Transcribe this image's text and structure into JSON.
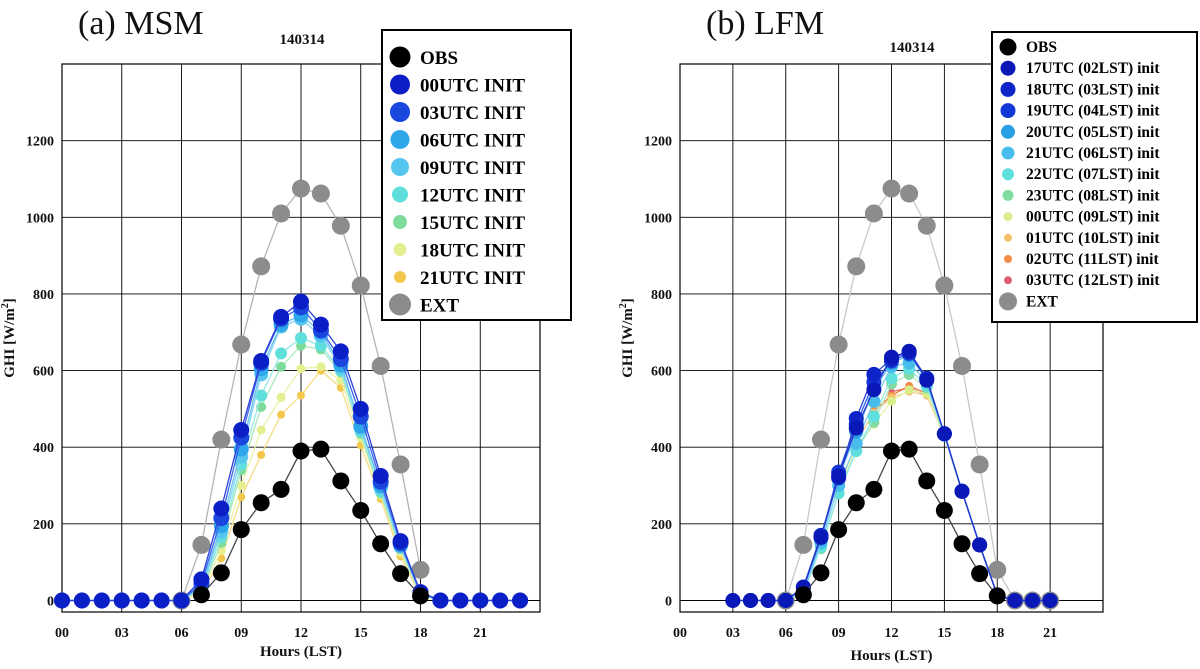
{
  "chart_data": [
    {
      "type": "line",
      "panel_label": "(a) MSM",
      "title": "140314",
      "xlabel": "Hours (LST)",
      "ylabel": "GHI [W/m",
      "ylabel_sup": "2",
      "ylabel_close": "]",
      "xticks": [
        "00",
        "03",
        "06",
        "09",
        "12",
        "15",
        "18",
        "21"
      ],
      "yticks": [
        "0",
        "200",
        "400",
        "600",
        "800",
        "1000",
        "1200"
      ],
      "xlim": [
        0,
        24
      ],
      "ylim": [
        -30,
        1400
      ],
      "grid": true,
      "legend_position": "top-right",
      "series": [
        {
          "name": "EXT",
          "color": "#8c8c8c",
          "line": "#b4b4b4",
          "size": 9,
          "x": [
            6,
            7,
            8,
            9,
            10,
            11,
            12,
            13,
            14,
            15,
            16,
            17,
            18
          ],
          "y": [
            0,
            145,
            420,
            668,
            872,
            1010,
            1075,
            1062,
            978,
            822,
            612,
            355,
            80
          ]
        },
        {
          "name": "21UTC INIT",
          "color": "#f3c84a",
          "line": "#f6dc86",
          "size": 4,
          "x": [
            0,
            1,
            2,
            3,
            4,
            5,
            6,
            7,
            8,
            9,
            10,
            11,
            12,
            13,
            14,
            15,
            16,
            17,
            18,
            19,
            20,
            21,
            22,
            23
          ],
          "y": [
            0,
            0,
            0,
            0,
            0,
            0,
            0,
            20,
            110,
            270,
            380,
            485,
            535,
            600,
            555,
            405,
            265,
            115,
            12,
            0,
            0,
            0,
            0,
            0
          ]
        },
        {
          "name": "18UTC INIT",
          "color": "#e4ef90",
          "line": "#e9f2a8",
          "size": 4.5,
          "x": [
            0,
            1,
            2,
            3,
            4,
            5,
            6,
            7,
            8,
            9,
            10,
            11,
            12,
            13,
            14,
            15,
            16,
            17,
            18,
            19,
            20,
            21,
            22,
            23
          ],
          "y": [
            0,
            0,
            0,
            0,
            0,
            0,
            0,
            25,
            130,
            300,
            445,
            530,
            605,
            610,
            575,
            425,
            275,
            125,
            15,
            0,
            0,
            0,
            0,
            0
          ]
        },
        {
          "name": "15UTC INIT",
          "color": "#7ddc9b",
          "line": "#a8e8be",
          "size": 5,
          "x": [
            0,
            1,
            2,
            3,
            4,
            5,
            6,
            7,
            8,
            9,
            10,
            11,
            12,
            13,
            14,
            15,
            16,
            17,
            18,
            19,
            20,
            21,
            22,
            23
          ],
          "y": [
            0,
            0,
            0,
            0,
            0,
            0,
            0,
            28,
            150,
            340,
            505,
            610,
            665,
            655,
            595,
            435,
            280,
            135,
            15,
            0,
            0,
            0,
            0,
            0
          ]
        },
        {
          "name": "12UTC INIT",
          "color": "#60dedb",
          "line": "#92e9e6",
          "size": 6,
          "x": [
            0,
            1,
            2,
            3,
            4,
            5,
            6,
            7,
            8,
            9,
            10,
            11,
            12,
            13,
            14,
            15,
            16,
            17,
            18,
            19,
            20,
            21,
            22,
            23
          ],
          "y": [
            0,
            0,
            0,
            0,
            0,
            0,
            0,
            32,
            165,
            355,
            535,
            645,
            685,
            665,
            600,
            440,
            285,
            140,
            16,
            0,
            0,
            0,
            0,
            0
          ]
        },
        {
          "name": "09UTC INIT",
          "color": "#56c6ef",
          "line": "#86d6f3",
          "size": 7,
          "x": [
            0,
            1,
            2,
            3,
            4,
            5,
            6,
            7,
            8,
            9,
            10,
            11,
            12,
            13,
            14,
            15,
            16,
            17,
            18,
            19,
            20,
            21,
            22,
            23
          ],
          "y": [
            0,
            0,
            0,
            0,
            0,
            0,
            0,
            35,
            180,
            375,
            590,
            715,
            735,
            690,
            610,
            450,
            295,
            140,
            18,
            0,
            0,
            0,
            0,
            0
          ]
        },
        {
          "name": "06UTC INIT",
          "color": "#2ea6ea",
          "line": "#6cc0f0",
          "size": 7.5,
          "x": [
            0,
            1,
            2,
            3,
            4,
            5,
            6,
            7,
            8,
            9,
            10,
            11,
            12,
            13,
            14,
            15,
            16,
            17,
            18,
            19,
            20,
            21,
            22,
            23
          ],
          "y": [
            0,
            0,
            0,
            0,
            0,
            0,
            0,
            38,
            195,
            395,
            605,
            720,
            745,
            700,
            615,
            455,
            300,
            145,
            18,
            0,
            0,
            0,
            0,
            0
          ]
        },
        {
          "name": "03UTC INIT",
          "color": "#1a46e0",
          "line": "#3a64ea",
          "size": 8,
          "x": [
            0,
            1,
            2,
            3,
            4,
            5,
            6,
            7,
            8,
            9,
            10,
            11,
            12,
            13,
            14,
            15,
            16,
            17,
            18,
            19,
            20,
            21,
            22,
            23
          ],
          "y": [
            0,
            0,
            0,
            0,
            0,
            0,
            0,
            45,
            215,
            425,
            620,
            735,
            765,
            705,
            630,
            480,
            310,
            150,
            20,
            0,
            0,
            0,
            0,
            0
          ]
        },
        {
          "name": "00UTC INIT",
          "color": "#0b1fc6",
          "line": "#2a3fd8",
          "size": 8,
          "x": [
            0,
            1,
            2,
            3,
            4,
            5,
            6,
            7,
            8,
            9,
            10,
            11,
            12,
            13,
            14,
            15,
            16,
            17,
            18,
            19,
            20,
            21,
            22,
            23
          ],
          "y": [
            0,
            0,
            0,
            0,
            0,
            0,
            0,
            55,
            240,
            445,
            625,
            740,
            780,
            720,
            650,
            500,
            325,
            155,
            22,
            0,
            0,
            0,
            0,
            0
          ]
        },
        {
          "name": "OBS",
          "color": "#000000",
          "line": "#444444",
          "size": 8.5,
          "x": [
            7,
            8,
            9,
            10,
            11,
            12,
            13,
            14,
            15,
            16,
            17,
            18
          ],
          "y": [
            15,
            72,
            185,
            255,
            290,
            390,
            395,
            312,
            235,
            148,
            70,
            12
          ]
        }
      ]
    },
    {
      "type": "line",
      "panel_label": "(b) LFM",
      "title": "140314",
      "xlabel": "Hours (LST)",
      "ylabel": "GHI [W/m",
      "ylabel_sup": "2",
      "ylabel_close": "]",
      "xticks": [
        "00",
        "03",
        "06",
        "09",
        "12",
        "15",
        "18",
        "21"
      ],
      "yticks": [
        "0",
        "200",
        "400",
        "600",
        "800",
        "1000",
        "1200"
      ],
      "xlim": [
        0,
        24
      ],
      "ylim": [
        -30,
        1400
      ],
      "grid": true,
      "legend_position": "top-right",
      "series": [
        {
          "name": "EXT",
          "color": "#8c8c8c",
          "line": "#c8c8c8",
          "size": 9,
          "x": [
            6,
            7,
            8,
            9,
            10,
            11,
            12,
            13,
            14,
            15,
            16,
            17,
            18,
            19,
            20,
            21
          ],
          "y": [
            0,
            145,
            420,
            668,
            872,
            1010,
            1075,
            1062,
            978,
            822,
            612,
            355,
            80,
            0,
            0,
            0
          ]
        },
        {
          "name": "03UTC (12LST) init",
          "color": "#e05a72",
          "line": "#e07060",
          "size": 3,
          "x": [
            12,
            13,
            14,
            15,
            16,
            17,
            18,
            19,
            20,
            21
          ],
          "y": [
            545,
            555,
            535,
            430,
            285,
            145,
            14,
            0,
            0,
            0
          ]
        },
        {
          "name": "02UTC (11LST) init",
          "color": "#f08c46",
          "line": "#ef7a3e",
          "size": 4,
          "x": [
            11,
            12,
            13,
            14,
            15,
            16,
            17,
            18,
            19,
            20,
            21
          ],
          "y": [
            495,
            535,
            560,
            540,
            430,
            285,
            145,
            14,
            0,
            0,
            0
          ]
        },
        {
          "name": "01UTC (10LST) init",
          "color": "#f5c06a",
          "line": "#f7d08e",
          "size": 4,
          "x": [
            10,
            11,
            12,
            13,
            14,
            15,
            16,
            17,
            18,
            19,
            20,
            21
          ],
          "y": [
            415,
            490,
            530,
            545,
            535,
            430,
            285,
            145,
            14,
            0,
            0,
            0
          ]
        },
        {
          "name": "00UTC (09LST) init",
          "color": "#d8ee8a",
          "line": "#e4f2a8",
          "size": 4.5,
          "x": [
            9,
            10,
            11,
            12,
            13,
            14,
            15,
            16,
            17,
            18,
            19,
            20,
            21
          ],
          "y": [
            290,
            400,
            460,
            520,
            550,
            540,
            430,
            285,
            145,
            14,
            0,
            0,
            0
          ]
        },
        {
          "name": "23UTC (08LST) init",
          "color": "#82dca2",
          "line": "#aee9c2",
          "size": 5.5,
          "x": [
            8,
            9,
            10,
            11,
            12,
            13,
            14,
            15,
            16,
            17,
            18,
            19,
            20,
            21
          ],
          "y": [
            135,
            280,
            390,
            465,
            565,
            590,
            555,
            430,
            285,
            145,
            14,
            0,
            0,
            0
          ]
        },
        {
          "name": "22UTC (07LST) init",
          "color": "#5ee0dc",
          "line": "#90eae6",
          "size": 6,
          "x": [
            7,
            8,
            9,
            10,
            11,
            12,
            13,
            14,
            15,
            16,
            17,
            18,
            19,
            20,
            21
          ],
          "y": [
            20,
            140,
            280,
            390,
            480,
            580,
            605,
            560,
            430,
            285,
            145,
            14,
            0,
            0,
            0
          ]
        },
        {
          "name": "21UTC (06LST) init",
          "color": "#48bdec",
          "line": "#7ccdf1",
          "size": 6.5,
          "x": [
            6,
            7,
            8,
            9,
            10,
            11,
            12,
            13,
            14,
            15,
            16,
            17,
            18,
            19,
            20,
            21
          ],
          "y": [
            0,
            25,
            150,
            300,
            410,
            520,
            610,
            620,
            570,
            435,
            285,
            145,
            14,
            0,
            0,
            0
          ]
        },
        {
          "name": "20UTC (05LST) init",
          "color": "#2a9fe6",
          "line": "#60b8ee",
          "size": 7,
          "x": [
            5,
            6,
            7,
            8,
            9,
            10,
            11,
            12,
            13,
            14,
            15,
            16,
            17,
            18,
            19,
            20,
            21
          ],
          "y": [
            0,
            0,
            30,
            160,
            320,
            440,
            550,
            620,
            640,
            575,
            435,
            285,
            145,
            14,
            0,
            0,
            0
          ]
        },
        {
          "name": "19UTC (04LST) init",
          "color": "#1438d8",
          "line": "#3a5ce6",
          "size": 7.5,
          "x": [
            4,
            5,
            6,
            7,
            8,
            9,
            10,
            11,
            12,
            13,
            14,
            15,
            16,
            17,
            18,
            19,
            20,
            21
          ],
          "y": [
            0,
            0,
            0,
            32,
            165,
            335,
            460,
            570,
            625,
            645,
            578,
            435,
            285,
            145,
            14,
            0,
            0,
            0
          ]
        },
        {
          "name": "18UTC (03LST) init",
          "color": "#0d24c8",
          "line": "#2a44d8",
          "size": 7.5,
          "x": [
            3,
            4,
            5,
            6,
            7,
            8,
            9,
            10,
            11,
            12,
            13,
            14,
            15,
            16,
            17,
            18,
            19,
            20,
            21
          ],
          "y": [
            0,
            0,
            0,
            0,
            35,
            170,
            320,
            475,
            590,
            630,
            650,
            580,
            435,
            285,
            145,
            14,
            0,
            0,
            0
          ]
        },
        {
          "name": "17UTC (02LST) init",
          "color": "#0a18b8",
          "line": "#2238cc",
          "size": 7.5,
          "x": [
            3,
            4,
            5,
            6,
            7,
            8,
            9,
            10,
            11,
            12,
            13,
            14,
            15,
            16,
            17,
            18,
            19,
            20,
            21
          ],
          "y": [
            0,
            0,
            0,
            0,
            35,
            165,
            325,
            450,
            550,
            635,
            650,
            575,
            435,
            285,
            145,
            14,
            0,
            0,
            0
          ]
        },
        {
          "name": "OBS",
          "color": "#000000",
          "line": "#444444",
          "size": 8.5,
          "x": [
            7,
            8,
            9,
            10,
            11,
            12,
            13,
            14,
            15,
            16,
            17,
            18
          ],
          "y": [
            15,
            72,
            185,
            255,
            290,
            390,
            395,
            312,
            235,
            148,
            70,
            12
          ]
        }
      ]
    }
  ]
}
